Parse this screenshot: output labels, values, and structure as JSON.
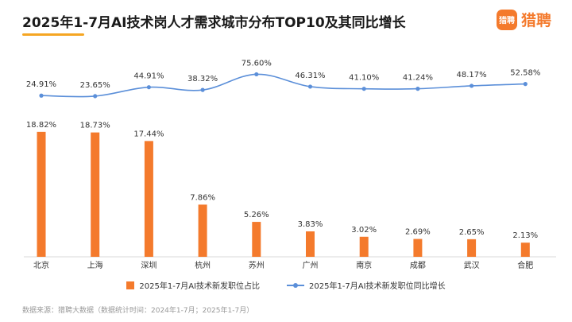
{
  "title": "2025年1-7月AI技术岗人才需求城市分布TOP10及其同比增长",
  "brand": {
    "badge_text": "猎聘",
    "name": "猎聘",
    "color": "#f47a2c"
  },
  "source_note": "数据来源：猎聘大数据（数据统计时间：2024年1-7月；2025年1-7月）",
  "chart_data": {
    "type": "bar",
    "categories": [
      "北京",
      "上海",
      "深圳",
      "杭州",
      "苏州",
      "广州",
      "南京",
      "成都",
      "武汉",
      "合肥"
    ],
    "series": [
      {
        "name": "2025年1-7月AI技术新发职位占比",
        "type": "bar",
        "color": "#f47a2c",
        "values": [
          18.82,
          18.73,
          17.44,
          7.86,
          5.26,
          3.83,
          3.02,
          2.69,
          2.65,
          2.13
        ],
        "labels": [
          "18.82%",
          "18.73%",
          "17.44%",
          "7.86%",
          "5.26%",
          "3.83%",
          "3.02%",
          "2.69%",
          "2.65%",
          "2.13%"
        ]
      },
      {
        "name": "2025年1-7月AI技术新发职位同比增长",
        "type": "line",
        "color": "#5b8fd9",
        "values": [
          24.91,
          23.65,
          44.91,
          38.32,
          75.6,
          46.31,
          41.1,
          41.24,
          48.17,
          52.58
        ],
        "labels": [
          "24.91%",
          "23.65%",
          "44.91%",
          "38.32%",
          "75.60%",
          "46.31%",
          "41.10%",
          "41.24%",
          "48.17%",
          "52.58%"
        ]
      }
    ],
    "legend_position": "bottom",
    "grid": false
  }
}
